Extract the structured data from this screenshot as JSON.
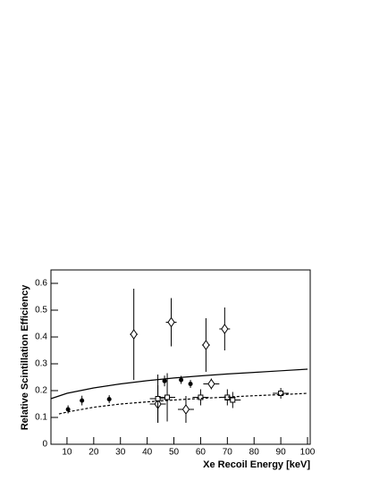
{
  "chart_data": {
    "type": "scatter",
    "x_label": "Xe Recoil Energy [keV]",
    "y_label": "Relative Scintillation Efficiency",
    "xlim": [
      4,
      101
    ],
    "ylim": [
      0,
      0.65
    ],
    "xticks": [
      10,
      20,
      30,
      40,
      50,
      60,
      70,
      80,
      90,
      100
    ],
    "yticks": [
      0,
      0.1,
      0.2,
      0.3,
      0.4,
      0.5,
      0.6
    ],
    "series": [
      {
        "marker": "filled-circle",
        "color": "#000000",
        "x": [
          10.4,
          15.6,
          25.8,
          46.5,
          52.7,
          56.2
        ],
        "values": [
          0.13,
          0.163,
          0.168,
          0.236,
          0.24,
          0.225
        ],
        "yerr": [
          0.015,
          0.018,
          0.015,
          0.02,
          0.015,
          0.015
        ]
      },
      {
        "marker": "open-diamond",
        "color": "#000000",
        "x": [
          35,
          49,
          62,
          69,
          64,
          44,
          54.5
        ],
        "values": [
          0.41,
          0.455,
          0.37,
          0.43,
          0.225,
          0.15,
          0.13
        ],
        "yerr": [
          0.17,
          0.09,
          0.1,
          0.08,
          0.02,
          0.07,
          0.05
        ],
        "xerr": [
          1.5,
          2,
          1.5,
          2,
          3,
          3,
          3
        ]
      },
      {
        "marker": "open-square",
        "color": "#000000",
        "x": [
          44,
          47.5,
          60,
          70,
          72,
          90
        ],
        "values": [
          0.17,
          0.175,
          0.175,
          0.175,
          0.165,
          0.19
        ],
        "yerr": [
          0.09,
          0.09,
          0.03,
          0.03,
          0.03,
          0.02
        ],
        "xerr": [
          3,
          3,
          3,
          3,
          3,
          3
        ]
      },
      {
        "marker": "line-solid",
        "color": "#000000",
        "x": [
          4,
          10,
          20,
          30,
          40,
          50,
          60,
          70,
          80,
          90,
          100
        ],
        "values": [
          0.17,
          0.19,
          0.21,
          0.225,
          0.237,
          0.247,
          0.255,
          0.262,
          0.268,
          0.274,
          0.28
        ]
      },
      {
        "marker": "line-dashed",
        "color": "#000000",
        "x": [
          7,
          10,
          20,
          30,
          40,
          50,
          60,
          70,
          80,
          90,
          100
        ],
        "values": [
          0.113,
          0.12,
          0.138,
          0.15,
          0.158,
          0.165,
          0.171,
          0.176,
          0.181,
          0.185,
          0.19
        ]
      }
    ]
  }
}
